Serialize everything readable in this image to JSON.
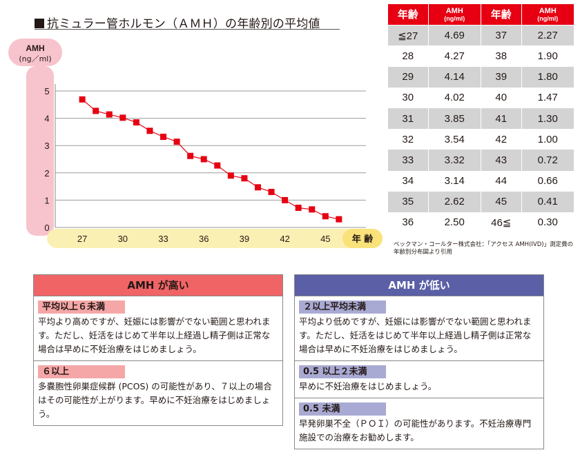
{
  "title": "抗ミュラー管ホルモン（ＡＭＨ）の年齢別の平均値",
  "chart_data": {
    "type": "line",
    "ylabel_line1": "AMH",
    "ylabel_line2": "(ng／ml)",
    "xlabel": "年 齢",
    "ylim": [
      0,
      5
    ],
    "yticks": [
      0,
      1,
      2,
      3,
      4,
      5
    ],
    "xlim": [
      25,
      48
    ],
    "xticks": [
      27,
      30,
      33,
      36,
      39,
      42,
      45
    ],
    "grid": true,
    "marker_color": "#e60012",
    "line_color": "#e60012",
    "x": [
      27,
      28,
      29,
      30,
      31,
      32,
      33,
      34,
      35,
      36,
      37,
      38,
      39,
      40,
      41,
      42,
      43,
      44,
      45,
      46
    ],
    "values": [
      4.69,
      4.27,
      4.14,
      4.02,
      3.85,
      3.54,
      3.32,
      3.14,
      2.62,
      2.5,
      2.27,
      1.9,
      1.8,
      1.47,
      1.3,
      1.0,
      0.72,
      0.66,
      0.41,
      0.3
    ]
  },
  "table": {
    "header_age": "年齢",
    "header_val_line1": "AMH",
    "header_val_line2": "(ng/ml)",
    "left": [
      {
        "age": "≦27",
        "val": "4.69"
      },
      {
        "age": "28",
        "val": "4.27"
      },
      {
        "age": "29",
        "val": "4.14"
      },
      {
        "age": "30",
        "val": "4.02"
      },
      {
        "age": "31",
        "val": "3.85"
      },
      {
        "age": "32",
        "val": "3.54"
      },
      {
        "age": "33",
        "val": "3.32"
      },
      {
        "age": "34",
        "val": "3.14"
      },
      {
        "age": "35",
        "val": "2.62"
      },
      {
        "age": "36",
        "val": "2.50"
      }
    ],
    "right": [
      {
        "age": "37",
        "val": "2.27"
      },
      {
        "age": "38",
        "val": "1.90"
      },
      {
        "age": "39",
        "val": "1.80"
      },
      {
        "age": "40",
        "val": "1.47"
      },
      {
        "age": "41",
        "val": "1.30"
      },
      {
        "age": "42",
        "val": "1.00"
      },
      {
        "age": "43",
        "val": "0.72"
      },
      {
        "age": "44",
        "val": "0.66"
      },
      {
        "age": "45",
        "val": "0.41"
      },
      {
        "age": "46≦",
        "val": "0.30"
      }
    ]
  },
  "source_note": "ベックマン・コールター株式会社：「アクセス AMH(IVD)」測定費の年齢別分布図より引用",
  "high_box": {
    "title": "AMH が高い",
    "color": "#f06466",
    "sections": [
      {
        "label": "平均以上６未満",
        "text": "平均より高めですが、妊娠には影響がでない範囲と思われます。ただし、妊活をはじめて半年以上経過し精子側は正常な場合は早めに不妊治療をはじめましょう。"
      },
      {
        "label": "６以上",
        "text": "多嚢胞性卵巣症候群 (PCOS) の可能性があり、７以上の場合はその可能性が上がります。早めに不妊治療をはじめましょう。"
      }
    ]
  },
  "low_box": {
    "title": "AMH が低い",
    "color": "#5a5fa6",
    "sections": [
      {
        "label": "２以上平均未満",
        "text": "平均より低めですが、妊娠には影響がでない範囲と思われます。ただし、妊活をはじめて半年以上経過し精子側は正常な場合は早めに不妊治療をはじめましょう。"
      },
      {
        "label": "0.5 以上２未満",
        "text": "早めに不妊治療をはじめましょう。"
      },
      {
        "label": "0.5 未満",
        "text": "早発卵巣不全（ＰＯＩ）の可能性があります。不妊治療専門施設での治療をお勧めします。"
      }
    ]
  }
}
